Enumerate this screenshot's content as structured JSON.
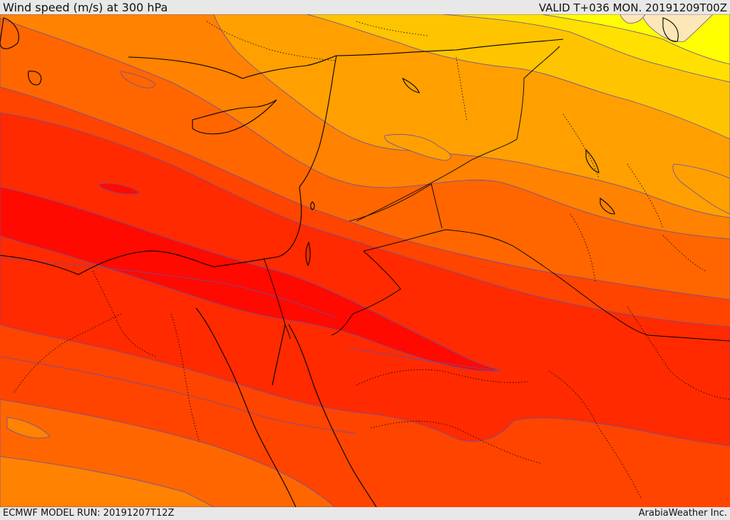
{
  "header": {
    "title": "Wind speed (m/s) at 300 hPa",
    "valid": "VALID T+036 MON. 20191209T00Z"
  },
  "footer": {
    "model_run": "ECMWF MODEL RUN: 20191207T12Z",
    "credit": "ArabiaWeather Inc."
  },
  "colors": {
    "jet_core": "#ff0a00",
    "very_strong": "#ff2a00",
    "strong": "#ff4400",
    "moderate_high": "#ff6600",
    "moderate": "#ff8200",
    "moderate_low": "#ffa000",
    "weak": "#ffc400",
    "light": "#ffe000",
    "lightest": "#ffff00",
    "pale": "#fde7b8",
    "contour": "#6b4fa0",
    "coast": "#000000"
  }
}
